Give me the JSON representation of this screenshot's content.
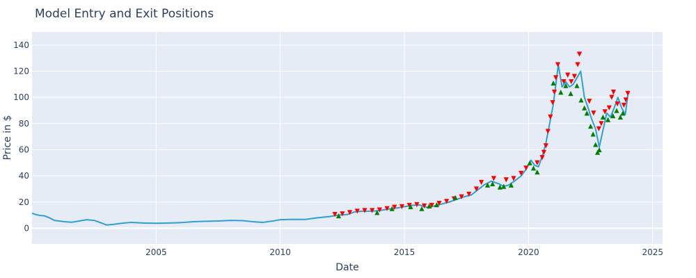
{
  "chart_data": {
    "type": "line",
    "title": "Model Entry and Exit Positions",
    "xlabel": "Date",
    "ylabel": "Price in $",
    "xlim": [
      2000.0,
      2025.4
    ],
    "ylim": [
      -12,
      150
    ],
    "x_ticks": [
      2005,
      2010,
      2015,
      2020,
      2025
    ],
    "x_tick_labels": [
      "2005",
      "2010",
      "2015",
      "2020",
      "2025"
    ],
    "y_ticks": [
      0,
      20,
      40,
      60,
      80,
      100,
      120,
      140
    ],
    "y_tick_labels": [
      "0",
      "20",
      "40",
      "60",
      "80",
      "100",
      "120",
      "140"
    ],
    "grid": true,
    "legend": "none",
    "colors": {
      "price": "#2e9fd4",
      "entry": "#008000",
      "exit": "#ff0000",
      "plot_bg": "#e5ecf6",
      "grid": "#ffffff",
      "text": "#2a3f5f"
    },
    "series": [
      {
        "type": "line",
        "x": [
          2000.0,
          2000.15,
          2000.3,
          2000.5,
          2000.7,
          2000.9,
          2001.1,
          2001.3,
          2001.6,
          2001.9,
          2002.2,
          2002.5,
          2002.8,
          2003.0,
          2003.3,
          2003.6,
          2004.0,
          2004.5,
          2005.0,
          2005.5,
          2006.0,
          2006.5,
          2007.0,
          2007.5,
          2008.0,
          2008.5,
          2008.9,
          2009.3,
          2009.7,
          2010.0,
          2010.5,
          2011.0,
          2011.5,
          2012.0,
          2012.3,
          2012.7,
          2013.0,
          2013.3,
          2013.7,
          2014.0,
          2014.3,
          2014.7,
          2015.0,
          2015.3,
          2015.6,
          2015.9,
          2016.2,
          2016.5,
          2016.8,
          2017.1,
          2017.4,
          2017.7,
          2018.0,
          2018.2,
          2018.5,
          2018.8,
          2019.0,
          2019.2,
          2019.5,
          2019.7,
          2019.9,
          2020.1,
          2020.25,
          2020.4,
          2020.55,
          2020.7,
          2020.85,
          2021.0,
          2021.1,
          2021.2,
          2021.35,
          2021.5,
          2021.65,
          2021.8,
          2021.95,
          2022.1,
          2022.25,
          2022.4,
          2022.55,
          2022.7,
          2022.85,
          2023.0,
          2023.15,
          2023.3,
          2023.45,
          2023.6,
          2023.75,
          2023.9,
          2024.0
        ],
        "y": [
          11.5,
          10.5,
          9.8,
          9.5,
          8.0,
          6.0,
          5.5,
          5.0,
          4.6,
          5.5,
          6.5,
          6.0,
          4.0,
          2.5,
          3.0,
          3.8,
          4.5,
          4.0,
          3.8,
          4.0,
          4.3,
          5.0,
          5.3,
          5.5,
          6.0,
          5.8,
          5.0,
          4.5,
          5.5,
          6.5,
          6.8,
          6.7,
          8.0,
          9.0,
          10.0,
          10.5,
          12.5,
          13.0,
          13.0,
          13.5,
          14.5,
          15.5,
          16.5,
          17.5,
          17.8,
          16.0,
          17.0,
          18.5,
          20.0,
          22.0,
          24.0,
          25.5,
          30.0,
          33.0,
          36.0,
          34.0,
          32.0,
          33.0,
          37.0,
          40.0,
          45.0,
          52.0,
          48.0,
          47.0,
          55.0,
          65.0,
          80.0,
          95.0,
          110.0,
          125.0,
          108.0,
          112.0,
          108.0,
          110.0,
          115.0,
          120.0,
          100.0,
          92.0,
          83.0,
          76.0,
          62.0,
          75.0,
          88.0,
          85.0,
          92.0,
          100.0,
          92.0,
          87.0,
          102.0
        ]
      },
      {
        "type": "scatter",
        "marker": "triangle-down",
        "x": [
          2012.2,
          2012.5,
          2012.8,
          2013.1,
          2013.4,
          2013.7,
          2014.0,
          2014.3,
          2014.6,
          2014.9,
          2015.2,
          2015.5,
          2015.8,
          2016.1,
          2016.4,
          2016.7,
          2017.0,
          2017.3,
          2017.6,
          2017.9,
          2018.1,
          2018.6,
          2019.1,
          2019.4,
          2019.7,
          2019.9,
          2020.35,
          2020.55,
          2020.62,
          2020.7,
          2020.78,
          2020.88,
          2020.97,
          2021.04,
          2021.1,
          2021.18,
          2021.42,
          2021.58,
          2021.72,
          2021.85,
          2021.98,
          2022.05,
          2022.45,
          2022.62,
          2022.83,
          2022.93,
          2023.08,
          2023.25,
          2023.35,
          2023.42,
          2023.58,
          2023.84,
          2023.92,
          2024.0
        ],
        "y": [
          10.5,
          11.0,
          12.0,
          13.0,
          13.5,
          13.5,
          14.0,
          15.0,
          16.0,
          16.5,
          17.5,
          18.0,
          17.0,
          17.5,
          19.0,
          20.5,
          22.5,
          24.0,
          26.0,
          30.0,
          35.0,
          38.0,
          37.0,
          38.0,
          42.0,
          46.0,
          50.0,
          54.0,
          58.0,
          63.0,
          74.0,
          85.0,
          96.0,
          104.0,
          115.0,
          125.0,
          112.0,
          117.0,
          112.0,
          116.0,
          125.0,
          133.0,
          97.0,
          88.0,
          76.0,
          80.0,
          89.0,
          92.0,
          100.0,
          104.0,
          95.0,
          94.0,
          98.0,
          103.0
        ]
      },
      {
        "type": "scatter",
        "marker": "triangle-up",
        "x": [
          2012.35,
          2013.9,
          2014.5,
          2015.25,
          2015.7,
          2016.0,
          2016.3,
          2017.05,
          2018.35,
          2018.55,
          2018.85,
          2019.0,
          2019.3,
          2020.05,
          2020.2,
          2020.35,
          2021.0,
          2021.3,
          2021.5,
          2021.7,
          2021.95,
          2022.12,
          2022.25,
          2022.35,
          2022.5,
          2022.6,
          2022.7,
          2022.78,
          2022.85,
          2023.0,
          2023.2,
          2023.4,
          2023.55,
          2023.7,
          2023.8
        ],
        "y": [
          9.5,
          12.0,
          15.0,
          16.5,
          15.0,
          17.0,
          18.0,
          23.5,
          33.0,
          34.0,
          31.5,
          32.0,
          33.0,
          50.0,
          46.0,
          43.0,
          111.0,
          104.0,
          109.0,
          103.0,
          109.0,
          98.0,
          92.0,
          88.0,
          78.0,
          72.0,
          64.0,
          58.0,
          60.0,
          85.0,
          83.0,
          86.0,
          90.0,
          85.0,
          88.0
        ]
      }
    ]
  }
}
